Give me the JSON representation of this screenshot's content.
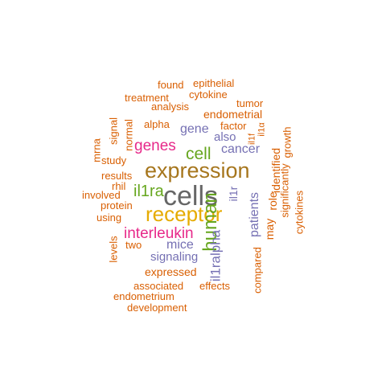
{
  "colors": {
    "orange": "#d95f02",
    "purple": "#7570b3",
    "magenta": "#e7298a",
    "green": "#66a61e",
    "yellow": "#e6ab02",
    "brown": "#a6761d",
    "gray": "#666666"
  },
  "words": {
    "cells": "cells",
    "expression": "expression",
    "receptor": "receptor",
    "human": "human",
    "interleukin": "interleukin",
    "il1ra": "il1ra",
    "cell": "cell",
    "genes": "genes",
    "il1ralpha": "il1ralpha",
    "patients": "patients",
    "cancer": "cancer",
    "mice": "mice",
    "signaling": "signaling",
    "gene": "gene",
    "also": "also",
    "endometrial": "endometrial",
    "tumor": "tumor",
    "factor": "factor",
    "alpha": "alpha",
    "cytokine": "cytokine",
    "epithelial": "epithelial",
    "found": "found",
    "treatment": "treatment",
    "analysis": "analysis",
    "signal": "signal",
    "normal": "normal",
    "mrna": "mrna",
    "study": "study",
    "results": "results",
    "rhil": "rhil",
    "involved": "involved",
    "protein": "protein",
    "using": "using",
    "levels": "levels",
    "two": "two",
    "expressed": "expressed",
    "associated": "associated",
    "effects": "effects",
    "endometrium": "endometrium",
    "development": "development",
    "compared": "compared",
    "may": "may",
    "role": "role",
    "identified": "identified",
    "significantly": "significantly",
    "growth": "growth",
    "cytokines": "cytokines",
    "il1r": "il1r",
    "il1f": "il1f",
    "il1alpha": "il1α"
  }
}
